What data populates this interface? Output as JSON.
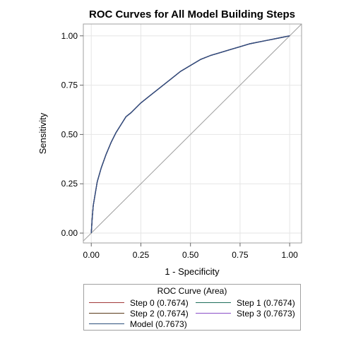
{
  "chart_data": {
    "type": "line",
    "title": "ROC Curves for All Model Building Steps",
    "xlabel": "1 - Specificity",
    "ylabel": "Sensitivity",
    "xlim": [
      -0.04,
      1.06
    ],
    "ylim": [
      -0.05,
      1.06
    ],
    "xticks": [
      "0.00",
      "0.25",
      "0.50",
      "0.75",
      "1.00"
    ],
    "yticks": [
      "0.00",
      "0.25",
      "0.50",
      "0.75",
      "1.00"
    ],
    "grid": true,
    "legend_title": "ROC Curve (Area)",
    "legend_position": "bottom",
    "reference_line": {
      "x": [
        0,
        1
      ],
      "y": [
        0,
        1
      ],
      "color": "#a0a0a0"
    },
    "series": [
      {
        "name": "Step 0  (0.7674)",
        "color": "#a23a3a",
        "x": [
          0,
          0.005,
          0.01,
          0.02,
          0.03,
          0.05,
          0.075,
          0.1,
          0.125,
          0.15,
          0.175,
          0.2,
          0.25,
          0.3,
          0.35,
          0.4,
          0.45,
          0.5,
          0.55,
          0.6,
          0.65,
          0.7,
          0.75,
          0.8,
          0.85,
          0.9,
          0.95,
          1.0
        ],
        "y": [
          0,
          0.08,
          0.14,
          0.2,
          0.26,
          0.33,
          0.4,
          0.46,
          0.51,
          0.55,
          0.59,
          0.61,
          0.66,
          0.7,
          0.74,
          0.78,
          0.82,
          0.85,
          0.88,
          0.9,
          0.915,
          0.93,
          0.945,
          0.96,
          0.97,
          0.98,
          0.99,
          1.0
        ]
      },
      {
        "name": "Step 1  (0.7674)",
        "color": "#1f6f5c",
        "x": [
          0,
          0.005,
          0.01,
          0.02,
          0.03,
          0.05,
          0.075,
          0.1,
          0.125,
          0.15,
          0.175,
          0.2,
          0.25,
          0.3,
          0.35,
          0.4,
          0.45,
          0.5,
          0.55,
          0.6,
          0.65,
          0.7,
          0.75,
          0.8,
          0.85,
          0.9,
          0.95,
          1.0
        ],
        "y": [
          0,
          0.08,
          0.14,
          0.2,
          0.26,
          0.33,
          0.4,
          0.46,
          0.51,
          0.55,
          0.59,
          0.61,
          0.66,
          0.7,
          0.74,
          0.78,
          0.82,
          0.85,
          0.88,
          0.9,
          0.915,
          0.93,
          0.945,
          0.96,
          0.97,
          0.98,
          0.99,
          1.0
        ]
      },
      {
        "name": "Step 2  (0.7674)",
        "color": "#5a3a1a",
        "x": [
          0,
          0.005,
          0.01,
          0.02,
          0.03,
          0.05,
          0.075,
          0.1,
          0.125,
          0.15,
          0.175,
          0.2,
          0.25,
          0.3,
          0.35,
          0.4,
          0.45,
          0.5,
          0.55,
          0.6,
          0.65,
          0.7,
          0.75,
          0.8,
          0.85,
          0.9,
          0.95,
          1.0
        ],
        "y": [
          0,
          0.08,
          0.14,
          0.2,
          0.26,
          0.33,
          0.4,
          0.46,
          0.51,
          0.55,
          0.59,
          0.61,
          0.66,
          0.7,
          0.74,
          0.78,
          0.82,
          0.85,
          0.88,
          0.9,
          0.915,
          0.93,
          0.945,
          0.96,
          0.97,
          0.98,
          0.99,
          1.0
        ]
      },
      {
        "name": "Step 3  (0.7673)",
        "color": "#8a4fc8",
        "x": [
          0,
          0.005,
          0.01,
          0.02,
          0.03,
          0.05,
          0.075,
          0.1,
          0.125,
          0.15,
          0.175,
          0.2,
          0.25,
          0.3,
          0.35,
          0.4,
          0.45,
          0.5,
          0.55,
          0.6,
          0.65,
          0.7,
          0.75,
          0.8,
          0.85,
          0.9,
          0.95,
          1.0
        ],
        "y": [
          0,
          0.08,
          0.14,
          0.2,
          0.26,
          0.33,
          0.4,
          0.46,
          0.51,
          0.55,
          0.59,
          0.61,
          0.66,
          0.7,
          0.74,
          0.78,
          0.82,
          0.85,
          0.88,
          0.9,
          0.915,
          0.93,
          0.945,
          0.96,
          0.97,
          0.98,
          0.99,
          1.0
        ]
      },
      {
        "name": "Model  (0.7673)",
        "color": "#2d4f7c",
        "x": [
          0,
          0.005,
          0.01,
          0.02,
          0.03,
          0.05,
          0.075,
          0.1,
          0.125,
          0.15,
          0.175,
          0.2,
          0.25,
          0.3,
          0.35,
          0.4,
          0.45,
          0.5,
          0.55,
          0.6,
          0.65,
          0.7,
          0.75,
          0.8,
          0.85,
          0.9,
          0.95,
          1.0
        ],
        "y": [
          0,
          0.08,
          0.14,
          0.2,
          0.26,
          0.33,
          0.4,
          0.46,
          0.51,
          0.55,
          0.59,
          0.61,
          0.66,
          0.7,
          0.74,
          0.78,
          0.82,
          0.85,
          0.88,
          0.9,
          0.915,
          0.93,
          0.945,
          0.96,
          0.97,
          0.98,
          0.99,
          1.0
        ]
      }
    ]
  }
}
